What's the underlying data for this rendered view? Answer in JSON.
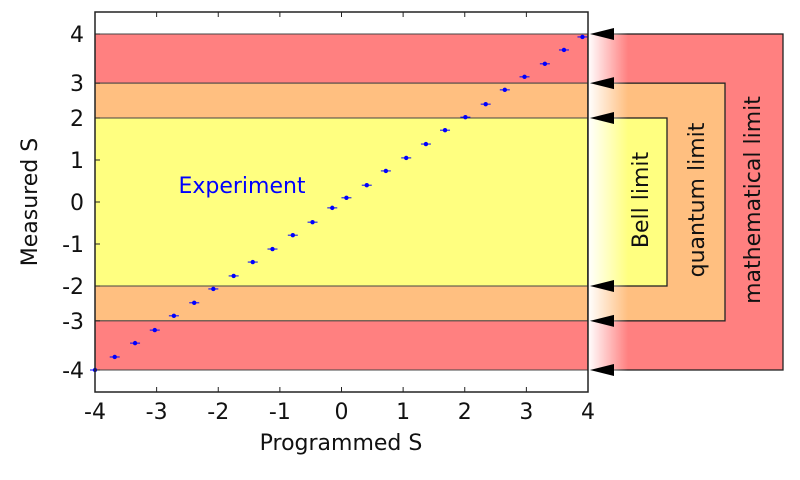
{
  "chart_data": {
    "type": "scatter",
    "xlabel": "Programmed S",
    "ylabel": "Measured S",
    "xlim": [
      -4,
      4
    ],
    "ylim": [
      -4,
      4
    ],
    "x_ticks": [
      {
        "value": -4,
        "label": "-4"
      },
      {
        "value": -3,
        "label": "-3"
      },
      {
        "value": -2,
        "label": "-2"
      },
      {
        "value": -1,
        "label": "-1"
      },
      {
        "value": 0,
        "label": "0"
      },
      {
        "value": 1,
        "label": "1"
      },
      {
        "value": 2,
        "label": "2"
      },
      {
        "value": 3,
        "label": "3"
      },
      {
        "value": 4,
        "label": "4"
      }
    ],
    "y_ticks": [
      {
        "value": 4,
        "label": "4"
      },
      {
        "value": 2.83,
        "label": "3"
      },
      {
        "value": 2,
        "label": "2"
      },
      {
        "value": 1,
        "label": "1"
      },
      {
        "value": 0,
        "label": "0"
      },
      {
        "value": -1,
        "label": "-1"
      },
      {
        "value": -2,
        "label": "-2"
      },
      {
        "value": -2.83,
        "label": "-3"
      },
      {
        "value": -4,
        "label": "-4"
      }
    ],
    "bands": [
      {
        "from": 2.83,
        "to": 4,
        "color": "#ff8080",
        "name": "mathematical"
      },
      {
        "from": 2,
        "to": 2.83,
        "color": "#ffbf80",
        "name": "quantum"
      },
      {
        "from": -2,
        "to": 2,
        "color": "#ffff80",
        "name": "bell"
      },
      {
        "from": -2.83,
        "to": -2,
        "color": "#ffbf80",
        "name": "quantum"
      },
      {
        "from": -4,
        "to": -2.83,
        "color": "#ff8080",
        "name": "mathematical"
      }
    ],
    "series": [
      {
        "name": "Experiment",
        "color": "#0000ff",
        "x": [
          -4,
          -3.68,
          -3.35,
          -3.03,
          -2.72,
          -2.39,
          -2.08,
          -1.75,
          -1.44,
          -1.12,
          -0.79,
          -0.47,
          -0.15,
          0.08,
          0.41,
          0.72,
          1.05,
          1.37,
          1.68,
          2.01,
          2.34,
          2.65,
          2.97,
          3.3,
          3.61,
          3.91
        ],
        "y": [
          -4,
          -3.69,
          -3.36,
          -3.05,
          -2.71,
          -2.4,
          -2.07,
          -1.76,
          -1.43,
          -1.12,
          -0.79,
          -0.48,
          -0.14,
          0.1,
          0.4,
          0.74,
          1.05,
          1.38,
          1.71,
          2.02,
          2.33,
          2.67,
          2.98,
          3.29,
          3.62,
          3.93
        ]
      }
    ],
    "annotation": "Experiment",
    "limits": [
      {
        "label": "Bell limit",
        "value": 2,
        "color": "#ffff80"
      },
      {
        "label": "quantum limit",
        "value": 2.83,
        "color": "#ffbf80"
      },
      {
        "label": "mathematical limit",
        "value": 4,
        "color": "#ff8080"
      }
    ]
  }
}
